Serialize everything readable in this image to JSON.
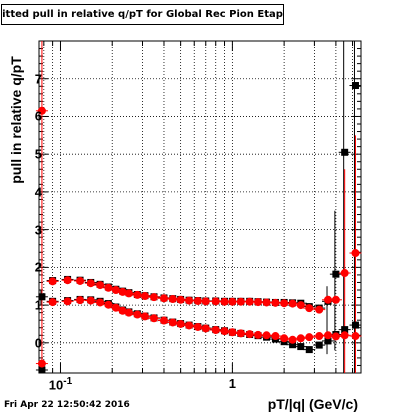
{
  "chart_data": {
    "type": "scatter",
    "title": "Fitted pull in relative q/pT  for Global Rec Pion EtapT",
    "xlabel": "pT/|q| (GeV/c)",
    "ylabel": "pull in relative q/pT",
    "x_scale": "log",
    "xlim": [
      0.075,
      5.6
    ],
    "ylim": [
      -0.8,
      8.0
    ],
    "yticks": [
      "0",
      "1",
      "2",
      "3",
      "4",
      "5",
      "6",
      "7"
    ],
    "xticks": [
      {
        "value": 0.1,
        "label": "10",
        "exp": "-1"
      },
      {
        "value": 1,
        "label": "1",
        "exp": ""
      }
    ],
    "grid": true,
    "series": [
      {
        "color": "#000000",
        "points": [
          [
            0.078,
            1.22
          ],
          [
            0.078,
            -0.72
          ],
          [
            0.09,
            1.65
          ],
          [
            0.09,
            1.1
          ],
          [
            0.11,
            1.68
          ],
          [
            0.11,
            1.12
          ],
          [
            0.13,
            1.66
          ],
          [
            0.13,
            1.15
          ],
          [
            0.15,
            1.6
          ],
          [
            0.15,
            1.14
          ],
          [
            0.17,
            1.55
          ],
          [
            0.17,
            1.1
          ],
          [
            0.19,
            1.48
          ],
          [
            0.19,
            1.04
          ],
          [
            0.21,
            1.42
          ],
          [
            0.21,
            0.95
          ],
          [
            0.23,
            1.37
          ],
          [
            0.23,
            0.87
          ],
          [
            0.25,
            1.33
          ],
          [
            0.25,
            0.82
          ],
          [
            0.28,
            1.28
          ],
          [
            0.28,
            0.77
          ],
          [
            0.31,
            1.25
          ],
          [
            0.31,
            0.71
          ],
          [
            0.35,
            1.22
          ],
          [
            0.35,
            0.66
          ],
          [
            0.4,
            1.19
          ],
          [
            0.4,
            0.6
          ],
          [
            0.45,
            1.17
          ],
          [
            0.45,
            0.55
          ],
          [
            0.5,
            1.15
          ],
          [
            0.5,
            0.51
          ],
          [
            0.56,
            1.13
          ],
          [
            0.56,
            0.47
          ],
          [
            0.63,
            1.12
          ],
          [
            0.63,
            0.43
          ],
          [
            0.7,
            1.11
          ],
          [
            0.7,
            0.39
          ],
          [
            0.8,
            1.11
          ],
          [
            0.8,
            0.35
          ],
          [
            0.9,
            1.1
          ],
          [
            0.9,
            0.32
          ],
          [
            1.0,
            1.1
          ],
          [
            1.0,
            0.28
          ],
          [
            1.12,
            1.1
          ],
          [
            1.12,
            0.25
          ],
          [
            1.26,
            1.1
          ],
          [
            1.26,
            0.22
          ],
          [
            1.41,
            1.09
          ],
          [
            1.41,
            0.19
          ],
          [
            1.58,
            1.08
          ],
          [
            1.58,
            0.15
          ],
          [
            1.78,
            1.07
          ],
          [
            1.78,
            0.1
          ],
          [
            2.0,
            1.07
          ],
          [
            2.0,
            0.03
          ],
          [
            2.24,
            1.06
          ],
          [
            2.24,
            -0.05
          ],
          [
            2.5,
            1.05
          ],
          [
            2.5,
            -0.1
          ],
          [
            2.8,
            0.96
          ],
          [
            2.8,
            -0.18
          ],
          [
            3.2,
            0.92
          ],
          [
            3.2,
            -0.06
          ],
          [
            3.6,
            1.1
          ],
          [
            3.6,
            0.05
          ],
          [
            4.0,
            1.82
          ],
          [
            4.0,
            0.22
          ],
          [
            4.5,
            5.05
          ],
          [
            4.5,
            0.35
          ],
          [
            5.2,
            6.82
          ],
          [
            5.2,
            0.47
          ]
        ]
      },
      {
        "color": "#ff0000",
        "points": [
          [
            0.078,
            6.15
          ],
          [
            0.078,
            -0.55
          ],
          [
            0.09,
            1.63
          ],
          [
            0.09,
            1.08
          ],
          [
            0.11,
            1.66
          ],
          [
            0.11,
            1.1
          ],
          [
            0.13,
            1.64
          ],
          [
            0.13,
            1.13
          ],
          [
            0.15,
            1.58
          ],
          [
            0.15,
            1.12
          ],
          [
            0.17,
            1.53
          ],
          [
            0.17,
            1.07
          ],
          [
            0.19,
            1.46
          ],
          [
            0.19,
            1.01
          ],
          [
            0.21,
            1.4
          ],
          [
            0.21,
            0.93
          ],
          [
            0.23,
            1.35
          ],
          [
            0.23,
            0.85
          ],
          [
            0.25,
            1.31
          ],
          [
            0.25,
            0.8
          ],
          [
            0.28,
            1.27
          ],
          [
            0.28,
            0.75
          ],
          [
            0.31,
            1.24
          ],
          [
            0.31,
            0.7
          ],
          [
            0.35,
            1.21
          ],
          [
            0.35,
            0.65
          ],
          [
            0.4,
            1.18
          ],
          [
            0.4,
            0.59
          ],
          [
            0.45,
            1.16
          ],
          [
            0.45,
            0.54
          ],
          [
            0.5,
            1.14
          ],
          [
            0.5,
            0.5
          ],
          [
            0.56,
            1.12
          ],
          [
            0.56,
            0.46
          ],
          [
            0.63,
            1.11
          ],
          [
            0.63,
            0.42
          ],
          [
            0.7,
            1.1
          ],
          [
            0.7,
            0.38
          ],
          [
            0.8,
            1.1
          ],
          [
            0.8,
            0.34
          ],
          [
            0.9,
            1.09
          ],
          [
            0.9,
            0.31
          ],
          [
            1.0,
            1.09
          ],
          [
            1.0,
            0.28
          ],
          [
            1.12,
            1.09
          ],
          [
            1.12,
            0.25
          ],
          [
            1.26,
            1.09
          ],
          [
            1.26,
            0.23
          ],
          [
            1.41,
            1.08
          ],
          [
            1.41,
            0.21
          ],
          [
            1.58,
            1.07
          ],
          [
            1.58,
            0.2
          ],
          [
            1.78,
            1.06
          ],
          [
            1.78,
            0.18
          ],
          [
            2.0,
            1.05
          ],
          [
            2.0,
            0.12
          ],
          [
            2.24,
            1.04
          ],
          [
            2.24,
            0.08
          ],
          [
            2.5,
            1.0
          ],
          [
            2.5,
            0.12
          ],
          [
            2.8,
            0.92
          ],
          [
            2.8,
            0.15
          ],
          [
            3.2,
            0.88
          ],
          [
            3.2,
            0.18
          ],
          [
            3.6,
            1.14
          ],
          [
            3.6,
            0.2
          ],
          [
            4.0,
            1.14
          ],
          [
            4.0,
            0.17
          ],
          [
            4.5,
            1.85
          ],
          [
            4.5,
            0.2
          ],
          [
            5.2,
            2.38
          ],
          [
            5.2,
            0.18
          ]
        ]
      }
    ],
    "error_bars": [
      {
        "series": 0,
        "x": 3.6,
        "lo": -0.3,
        "hi": 1.5
      },
      {
        "series": 0,
        "x": 4.0,
        "lo": -0.2,
        "hi": 3.5
      },
      {
        "series": 0,
        "x": 4.5,
        "lo": -0.8,
        "hi": 8.0
      },
      {
        "series": 0,
        "x": 5.2,
        "lo": -0.8,
        "hi": 8.0
      },
      {
        "series": 1,
        "x": 0.078,
        "lo": -0.8,
        "hi": 8.0
      },
      {
        "series": 1,
        "x": 4.5,
        "lo": -0.8,
        "hi": 4.6
      },
      {
        "series": 1,
        "x": 5.2,
        "lo": -0.8,
        "hi": 5.5
      },
      {
        "series": 0,
        "x": 0.078,
        "lo": 1.0,
        "hi": 1.4
      }
    ]
  },
  "footer": {
    "timestamp": "Fri Apr 22 12:50:42 2016"
  }
}
